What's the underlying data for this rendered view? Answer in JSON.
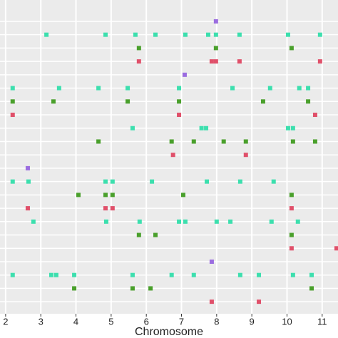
{
  "chart_data": {
    "type": "scatter",
    "x_label": "Chromosome",
    "xlim": [
      1.84,
      11.45
    ],
    "xticks": [
      2,
      3,
      4,
      5,
      6,
      7,
      8,
      9,
      10,
      11
    ],
    "ylim": [
      22.9,
      -0.6
    ],
    "yticks": [
      1,
      2,
      3,
      4,
      5,
      6,
      7,
      8,
      9,
      10,
      11,
      12,
      13,
      14,
      15,
      16,
      17,
      18,
      19,
      20,
      21,
      22
    ],
    "grid": true,
    "series": [
      {
        "color": "#9b6de0",
        "x": [
          7.98,
          7.09,
          2.63,
          7.86
        ],
        "y": [
          1,
          5,
          12,
          19
        ]
      },
      {
        "color": "#3ddfae",
        "x": [
          3.16,
          4.84,
          5.69,
          6.26,
          7.11,
          7.76,
          7.98,
          8.65,
          10.03,
          10.94,
          2.2,
          3.52,
          4.64,
          5.47,
          6.93,
          8.45,
          9.52,
          10.35,
          10.6,
          5.61,
          7.57,
          7.7,
          10.03,
          10.17,
          2.2,
          2.65,
          4.84,
          5.04,
          6.16,
          7.72,
          8.67,
          9.62,
          2.79,
          4.86,
          5.81,
          6.93,
          7.11,
          8.0,
          8.39,
          9.56,
          10.31,
          2.2,
          3.3,
          3.44,
          3.95,
          5.61,
          6.72,
          7.35,
          8.67,
          9.2,
          10.17,
          10.7
        ],
        "y": [
          2,
          2,
          2,
          2,
          2,
          2,
          2,
          2,
          2,
          2,
          6,
          6,
          6,
          6,
          6,
          6,
          6,
          6,
          6,
          9,
          9,
          9,
          9,
          9,
          13,
          13,
          13,
          13,
          13,
          13,
          13,
          13,
          16,
          16,
          16,
          16,
          16,
          16,
          16,
          16,
          16,
          20,
          20,
          20,
          20,
          20,
          20,
          20,
          20,
          20,
          20,
          20
        ]
      },
      {
        "color": "#4aa02c",
        "x": [
          5.79,
          7.98,
          10.13,
          2.2,
          3.36,
          5.47,
          6.93,
          9.32,
          10.6,
          4.64,
          6.72,
          7.35,
          8.2,
          8.83,
          10.17,
          10.8,
          4.07,
          4.84,
          5.04,
          7.05,
          10.13,
          5.79,
          6.26,
          10.13,
          3.95,
          5.61,
          6.12,
          10.7
        ],
        "y": [
          3,
          3,
          3,
          7,
          7,
          7,
          7,
          7,
          7,
          10,
          10,
          10,
          10,
          10,
          10,
          10,
          14,
          14,
          14,
          14,
          14,
          17,
          17,
          17,
          21,
          21,
          21,
          21
        ]
      },
      {
        "color": "#e0506a",
        "x": [
          5.79,
          7.86,
          7.98,
          8.65,
          10.94,
          2.2,
          6.93,
          10.8,
          6.76,
          8.83,
          2.63,
          4.84,
          5.04,
          10.13,
          10.13,
          11.41,
          7.86,
          9.2
        ],
        "y": [
          4,
          4,
          4,
          4,
          4,
          8,
          8,
          8,
          11,
          11,
          15,
          15,
          15,
          15,
          18,
          18,
          22,
          22
        ]
      }
    ]
  }
}
